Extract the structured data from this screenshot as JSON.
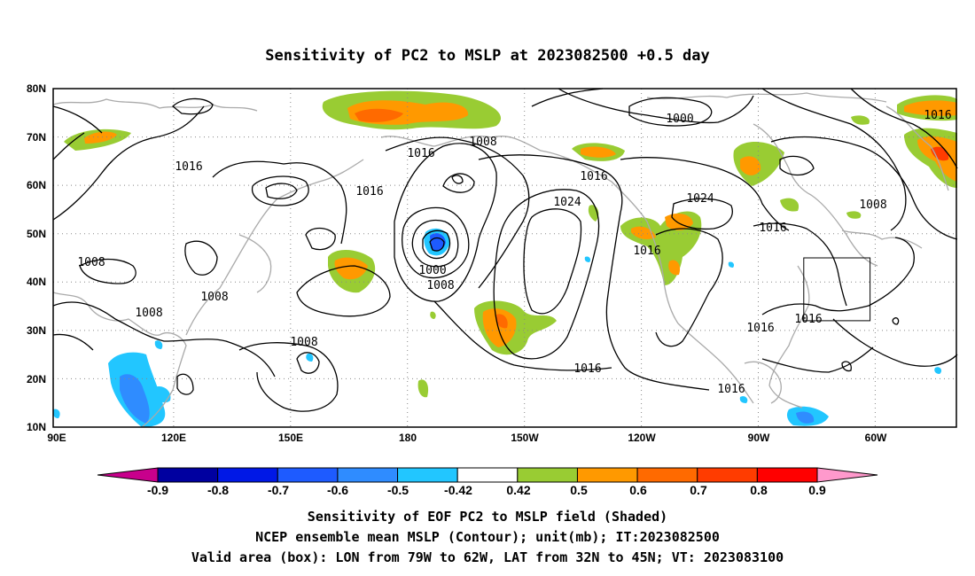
{
  "title": "Sensitivity of PC2 to MSLP at 2023082500 +0.5 day",
  "lat_labels": [
    "80N",
    "70N",
    "60N",
    "50N",
    "40N",
    "30N",
    "20N",
    "10N"
  ],
  "lon_labels": [
    "90E",
    "120E",
    "150E",
    "180",
    "150W",
    "120W",
    "90W",
    "60W"
  ],
  "contour_labels": [
    "1016",
    "1008",
    "1016",
    "1000",
    "1016",
    "1016",
    "1024",
    "1024",
    "1016",
    "1016",
    "1008",
    "1016",
    "1008",
    "1008",
    "1000",
    "1008",
    "1008",
    "1016",
    "1016",
    "1016",
    "1016",
    "1008"
  ],
  "colorbar": {
    "labels": [
      "-0.9",
      "-0.8",
      "-0.7",
      "-0.6",
      "-0.5",
      "-0.42",
      "0.42",
      "0.5",
      "0.6",
      "0.7",
      "0.8",
      "0.9"
    ],
    "colors": [
      "#0000a0",
      "#0018e6",
      "#1e5bff",
      "#2f8cff",
      "#22c6ff",
      "#ffffff",
      "#99cc33",
      "#ff9900",
      "#ff6a00",
      "#ff3c00",
      "#ff0000"
    ],
    "low_end_color": "#c8008c",
    "high_end_color": "#ff99cc"
  },
  "footer": {
    "line1": "Sensitivity of EOF PC2 to MSLP field (Shaded)",
    "line2": "NCEP ensemble mean MSLP (Contour); unit(mb); IT:2023082500",
    "line3": "Valid area (box): LON from 79W to 62W, LAT from 32N to 45N; VT: 2023083100"
  }
}
